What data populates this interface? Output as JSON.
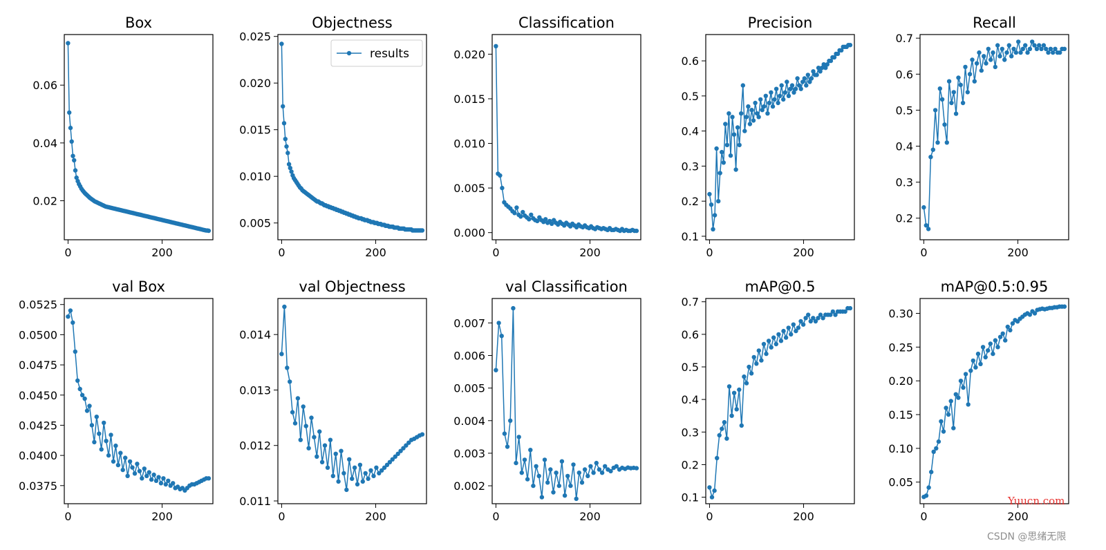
{
  "watermarks": {
    "primary": "Yuucn.com",
    "secondary": "CSDN @思绪无限"
  },
  "style": {
    "series_color": "#1f77b4"
  },
  "chart_data": [
    {
      "type": "line",
      "title": "Box",
      "xlim": [
        -8,
        308
      ],
      "ylim": [
        0.0065,
        0.0775
      ],
      "xticks": [
        0,
        200
      ],
      "yticks": [
        0.02,
        0.04,
        0.06
      ],
      "ytick_labels": [
        "0.02",
        "0.04",
        "0.06"
      ],
      "legend": null,
      "series": [
        {
          "values": [
            0.0745,
            0.0505,
            0.0452,
            0.0405,
            0.0355,
            0.034,
            0.0305,
            0.028,
            0.0268,
            0.0258,
            0.025,
            0.0242,
            0.0236,
            0.0231,
            0.0226,
            0.0222,
            0.0218,
            0.0214,
            0.021,
            0.0207,
            0.0204,
            0.0201,
            0.0198,
            0.0196,
            0.0194,
            0.0192,
            0.019,
            0.0188,
            0.0186,
            0.0184,
            0.0182,
            0.018,
            0.0179,
            0.0178,
            0.0177,
            0.0176,
            0.0175,
            0.0174,
            0.0173,
            0.0172,
            0.0171,
            0.017,
            0.0169,
            0.0168,
            0.0167,
            0.0166,
            0.0165,
            0.0164,
            0.0163,
            0.0162,
            0.0161,
            0.016,
            0.0159,
            0.0158,
            0.0157,
            0.0156,
            0.0155,
            0.0154,
            0.0153,
            0.0152,
            0.0151,
            0.015,
            0.0149,
            0.0148,
            0.0147,
            0.0146,
            0.0145,
            0.0144,
            0.0143,
            0.0142,
            0.0141,
            0.014,
            0.0139,
            0.0138,
            0.0137,
            0.0136,
            0.0135,
            0.0134,
            0.0133,
            0.0132,
            0.0131,
            0.013,
            0.0129,
            0.0128,
            0.0127,
            0.0126,
            0.0125,
            0.0124,
            0.0123,
            0.0122,
            0.0121,
            0.012,
            0.0119,
            0.0118,
            0.0117,
            0.0116,
            0.0115,
            0.0114,
            0.0113,
            0.0112,
            0.0111,
            0.011,
            0.0109,
            0.0108,
            0.0107,
            0.0106,
            0.0105,
            0.0104,
            0.0103,
            0.0102,
            0.0101,
            0.01,
            0.0099,
            0.0098,
            0.0097,
            0.0097,
            0.0096
          ]
        }
      ]
    },
    {
      "type": "line",
      "title": "Objectness",
      "xlim": [
        -8,
        308
      ],
      "ylim": [
        0.0032,
        0.0252
      ],
      "xticks": [
        0,
        200
      ],
      "yticks": [
        0.005,
        0.01,
        0.015,
        0.02,
        0.025
      ],
      "ytick_labels": [
        "0.005",
        "0.010",
        "0.015",
        "0.020",
        "0.025"
      ],
      "legend": {
        "label": "results",
        "position": "top-right"
      },
      "series": [
        {
          "name": "results",
          "values": [
            0.0242,
            0.0175,
            0.0157,
            0.014,
            0.0132,
            0.0125,
            0.0113,
            0.0109,
            0.0105,
            0.0101,
            0.0098,
            0.0096,
            0.0094,
            0.0092,
            0.009,
            0.0088,
            0.0087,
            0.0085,
            0.0084,
            0.0083,
            0.0082,
            0.0081,
            0.008,
            0.0079,
            0.0078,
            0.0077,
            0.0076,
            0.0075,
            0.0074,
            0.0073,
            0.0073,
            0.0072,
            0.0071,
            0.0071,
            0.007,
            0.0069,
            0.0069,
            0.0068,
            0.0068,
            0.0067,
            0.0067,
            0.0066,
            0.0066,
            0.0065,
            0.0065,
            0.0064,
            0.0064,
            0.0063,
            0.0063,
            0.0062,
            0.0062,
            0.0061,
            0.0061,
            0.006,
            0.006,
            0.0059,
            0.0059,
            0.0058,
            0.0058,
            0.0057,
            0.0057,
            0.0056,
            0.0056,
            0.0055,
            0.0055,
            0.0055,
            0.0054,
            0.0054,
            0.0053,
            0.0053,
            0.0053,
            0.0052,
            0.0052,
            0.0051,
            0.0051,
            0.0051,
            0.005,
            0.005,
            0.005,
            0.0049,
            0.0049,
            0.0049,
            0.0048,
            0.0048,
            0.0048,
            0.0047,
            0.0047,
            0.0047,
            0.0046,
            0.0046,
            0.0046,
            0.0046,
            0.0045,
            0.0045,
            0.0045,
            0.0045,
            0.0044,
            0.0044,
            0.0044,
            0.0044,
            0.0044,
            0.0043,
            0.0043,
            0.0043,
            0.0043,
            0.0043,
            0.0043,
            0.0042,
            0.0042,
            0.0042,
            0.0042,
            0.0042,
            0.0042,
            0.0042,
            0.0042,
            0.0042
          ]
        }
      ]
    },
    {
      "type": "line",
      "title": "Classification",
      "xlim": [
        -8,
        308
      ],
      "ylim": [
        -0.0008,
        0.0222
      ],
      "xticks": [
        0,
        200
      ],
      "yticks": [
        0.0,
        0.005,
        0.01,
        0.015,
        0.02
      ],
      "ytick_labels": [
        "0.000",
        "0.005",
        "0.010",
        "0.015",
        "0.020"
      ],
      "legend": null,
      "series": [
        {
          "values": [
            0.0209,
            0.0066,
            0.0064,
            0.005,
            0.0034,
            0.0031,
            0.0029,
            0.0027,
            0.0024,
            0.0022,
            0.0028,
            0.002,
            0.0018,
            0.0023,
            0.0019,
            0.0017,
            0.0015,
            0.002,
            0.0016,
            0.0014,
            0.0013,
            0.0017,
            0.0014,
            0.0012,
            0.0015,
            0.0011,
            0.0013,
            0.001,
            0.0014,
            0.0011,
            0.0009,
            0.0012,
            0.001,
            0.0008,
            0.0011,
            0.0009,
            0.0007,
            0.001,
            0.0008,
            0.0006,
            0.0009,
            0.0007,
            0.0006,
            0.0008,
            0.0006,
            0.0005,
            0.0007,
            0.0005,
            0.0004,
            0.0006,
            0.0005,
            0.0004,
            0.0005,
            0.0004,
            0.0003,
            0.0005,
            0.0003,
            0.0003,
            0.0004,
            0.0003,
            0.0002,
            0.0004,
            0.0002,
            0.0003,
            0.0002,
            0.0002,
            0.0003,
            0.0002,
            0.0002
          ]
        }
      ]
    },
    {
      "type": "line",
      "title": "Precision",
      "xlim": [
        -8,
        308
      ],
      "ylim": [
        0.09,
        0.675
      ],
      "xticks": [
        0,
        200
      ],
      "yticks": [
        0.1,
        0.2,
        0.3,
        0.4,
        0.5,
        0.6
      ],
      "ytick_labels": [
        "0.1",
        "0.2",
        "0.3",
        "0.4",
        "0.5",
        "0.6"
      ],
      "legend": null,
      "series": [
        {
          "values": [
            0.22,
            0.19,
            0.12,
            0.16,
            0.35,
            0.2,
            0.28,
            0.34,
            0.31,
            0.42,
            0.36,
            0.45,
            0.33,
            0.44,
            0.39,
            0.29,
            0.41,
            0.36,
            0.45,
            0.53,
            0.4,
            0.44,
            0.47,
            0.42,
            0.46,
            0.43,
            0.48,
            0.45,
            0.44,
            0.49,
            0.46,
            0.47,
            0.5,
            0.45,
            0.48,
            0.51,
            0.47,
            0.49,
            0.52,
            0.48,
            0.5,
            0.53,
            0.49,
            0.51,
            0.54,
            0.5,
            0.52,
            0.53,
            0.51,
            0.52,
            0.55,
            0.53,
            0.52,
            0.54,
            0.55,
            0.53,
            0.56,
            0.54,
            0.55,
            0.57,
            0.56,
            0.56,
            0.58,
            0.57,
            0.58,
            0.59,
            0.58,
            0.59,
            0.6,
            0.6,
            0.61,
            0.61,
            0.62,
            0.62,
            0.63,
            0.63,
            0.64,
            0.64,
            0.64,
            0.645,
            0.645
          ]
        }
      ]
    },
    {
      "type": "line",
      "title": "Recall",
      "xlim": [
        -8,
        308
      ],
      "ylim": [
        0.14,
        0.71
      ],
      "xticks": [
        0,
        200
      ],
      "yticks": [
        0.2,
        0.3,
        0.4,
        0.5,
        0.6,
        0.7
      ],
      "ytick_labels": [
        "0.2",
        "0.3",
        "0.4",
        "0.5",
        "0.6",
        "0.7"
      ],
      "legend": null,
      "series": [
        {
          "values": [
            0.23,
            0.18,
            0.17,
            0.37,
            0.39,
            0.5,
            0.41,
            0.56,
            0.53,
            0.46,
            0.41,
            0.58,
            0.52,
            0.55,
            0.49,
            0.59,
            0.57,
            0.52,
            0.62,
            0.55,
            0.6,
            0.64,
            0.58,
            0.63,
            0.66,
            0.61,
            0.65,
            0.63,
            0.67,
            0.64,
            0.66,
            0.62,
            0.68,
            0.65,
            0.67,
            0.64,
            0.66,
            0.68,
            0.65,
            0.67,
            0.66,
            0.69,
            0.66,
            0.67,
            0.68,
            0.66,
            0.67,
            0.69,
            0.68,
            0.67,
            0.68,
            0.67,
            0.68,
            0.67,
            0.66,
            0.67,
            0.66,
            0.67,
            0.66,
            0.66,
            0.67,
            0.67
          ]
        }
      ]
    },
    {
      "type": "line",
      "title": "val Box",
      "xlim": [
        -8,
        308
      ],
      "ylim": [
        0.036,
        0.053
      ],
      "xticks": [
        0,
        200
      ],
      "yticks": [
        0.0375,
        0.04,
        0.0425,
        0.045,
        0.0475,
        0.05,
        0.0525
      ],
      "ytick_labels": [
        "0.0375",
        "0.0400",
        "0.0425",
        "0.0450",
        "0.0475",
        "0.0500",
        "0.0525"
      ],
      "legend": null,
      "series": [
        {
          "values": [
            0.0515,
            0.052,
            0.051,
            0.0486,
            0.0462,
            0.0455,
            0.045,
            0.0447,
            0.0437,
            0.0441,
            0.0425,
            0.0411,
            0.0432,
            0.0418,
            0.0405,
            0.0427,
            0.0412,
            0.04,
            0.0417,
            0.0395,
            0.0408,
            0.0392,
            0.0402,
            0.0388,
            0.0398,
            0.0383,
            0.0395,
            0.039,
            0.0385,
            0.0393,
            0.0387,
            0.0381,
            0.0389,
            0.0383,
            0.0386,
            0.038,
            0.0384,
            0.0379,
            0.0382,
            0.0377,
            0.0381,
            0.0376,
            0.0379,
            0.0375,
            0.0377,
            0.0373,
            0.0374,
            0.0372,
            0.0373,
            0.0371,
            0.0373,
            0.0375,
            0.0376,
            0.0376,
            0.0377,
            0.0378,
            0.0379,
            0.038,
            0.0381,
            0.0381
          ]
        }
      ]
    },
    {
      "type": "line",
      "title": "val Objectness",
      "xlim": [
        -8,
        308
      ],
      "ylim": [
        0.01095,
        0.01465
      ],
      "xticks": [
        0,
        200
      ],
      "yticks": [
        0.011,
        0.012,
        0.013,
        0.014
      ],
      "ytick_labels": [
        "0.011",
        "0.012",
        "0.013",
        "0.014"
      ],
      "legend": null,
      "series": [
        {
          "values": [
            0.01365,
            0.0145,
            0.0134,
            0.01315,
            0.0126,
            0.0124,
            0.01285,
            0.0121,
            0.0127,
            0.01235,
            0.01195,
            0.0125,
            0.01215,
            0.0118,
            0.01225,
            0.0117,
            0.012,
            0.0116,
            0.0121,
            0.01145,
            0.01185,
            0.01135,
            0.0119,
            0.0115,
            0.0112,
            0.01175,
            0.0114,
            0.0116,
            0.0113,
            0.01165,
            0.01135,
            0.0115,
            0.0114,
            0.01155,
            0.01145,
            0.0116,
            0.0115,
            0.01155,
            0.0116,
            0.01165,
            0.0117,
            0.01175,
            0.0118,
            0.01185,
            0.0119,
            0.01195,
            0.012,
            0.01205,
            0.0121,
            0.01212,
            0.01215,
            0.01218,
            0.0122
          ]
        }
      ]
    },
    {
      "type": "line",
      "title": "val Classification",
      "xlim": [
        -8,
        308
      ],
      "ylim": [
        0.00145,
        0.00775
      ],
      "xticks": [
        0,
        200
      ],
      "yticks": [
        0.002,
        0.003,
        0.004,
        0.005,
        0.006,
        0.007
      ],
      "ytick_labels": [
        "0.002",
        "0.003",
        "0.004",
        "0.005",
        "0.006",
        "0.007"
      ],
      "legend": null,
      "series": [
        {
          "values": [
            0.00555,
            0.007,
            0.0066,
            0.0036,
            0.0032,
            0.004,
            0.00745,
            0.0027,
            0.0035,
            0.0024,
            0.0028,
            0.0022,
            0.0031,
            0.002,
            0.0026,
            0.0023,
            0.00165,
            0.0028,
            0.0021,
            0.0025,
            0.0018,
            0.0024,
            0.002,
            0.00275,
            0.0017,
            0.0023,
            0.002,
            0.00265,
            0.0016,
            0.0024,
            0.0021,
            0.0025,
            0.0023,
            0.0026,
            0.0024,
            0.0027,
            0.0025,
            0.0024,
            0.0026,
            0.0025,
            0.00245,
            0.00255,
            0.0026,
            0.0025,
            0.00255,
            0.00252,
            0.00256,
            0.00254,
            0.00255,
            0.00254
          ]
        }
      ]
    },
    {
      "type": "line",
      "title": "mAP@0.5",
      "xlim": [
        -8,
        308
      ],
      "ylim": [
        0.08,
        0.71
      ],
      "xticks": [
        0,
        200
      ],
      "yticks": [
        0.1,
        0.2,
        0.3,
        0.4,
        0.5,
        0.6,
        0.7
      ],
      "ytick_labels": [
        "0.1",
        "0.2",
        "0.3",
        "0.4",
        "0.5",
        "0.6",
        "0.7"
      ],
      "legend": null,
      "series": [
        {
          "values": [
            0.13,
            0.1,
            0.12,
            0.22,
            0.29,
            0.31,
            0.33,
            0.28,
            0.44,
            0.35,
            0.42,
            0.37,
            0.43,
            0.32,
            0.47,
            0.45,
            0.5,
            0.48,
            0.53,
            0.51,
            0.55,
            0.52,
            0.57,
            0.54,
            0.58,
            0.56,
            0.59,
            0.57,
            0.6,
            0.58,
            0.61,
            0.59,
            0.62,
            0.6,
            0.63,
            0.61,
            0.62,
            0.64,
            0.63,
            0.65,
            0.66,
            0.64,
            0.65,
            0.64,
            0.65,
            0.66,
            0.65,
            0.66,
            0.66,
            0.66,
            0.67,
            0.66,
            0.67,
            0.67,
            0.67,
            0.67,
            0.68,
            0.68
          ]
        }
      ]
    },
    {
      "type": "line",
      "title": "mAP@0.5:0.95",
      "xlim": [
        -8,
        308
      ],
      "ylim": [
        0.018,
        0.322
      ],
      "xticks": [
        0,
        200
      ],
      "yticks": [
        0.05,
        0.1,
        0.15,
        0.2,
        0.25,
        0.3
      ],
      "ytick_labels": [
        "0.05",
        "0.10",
        "0.15",
        "0.20",
        "0.25",
        "0.30"
      ],
      "legend": null,
      "series": [
        {
          "values": [
            0.028,
            0.03,
            0.042,
            0.065,
            0.095,
            0.1,
            0.11,
            0.14,
            0.125,
            0.16,
            0.15,
            0.17,
            0.13,
            0.18,
            0.175,
            0.2,
            0.19,
            0.21,
            0.165,
            0.215,
            0.23,
            0.22,
            0.24,
            0.225,
            0.25,
            0.235,
            0.245,
            0.255,
            0.24,
            0.26,
            0.25,
            0.265,
            0.27,
            0.26,
            0.28,
            0.275,
            0.285,
            0.29,
            0.288,
            0.292,
            0.295,
            0.298,
            0.3,
            0.298,
            0.303,
            0.3,
            0.305,
            0.306,
            0.307,
            0.306,
            0.307,
            0.308,
            0.308,
            0.309,
            0.309,
            0.31,
            0.31,
            0.31
          ]
        }
      ]
    }
  ]
}
